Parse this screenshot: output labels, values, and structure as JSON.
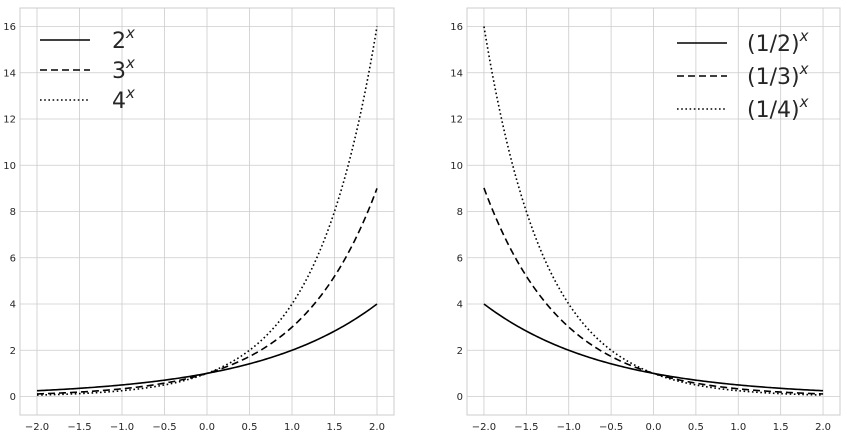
{
  "chart_data": [
    {
      "type": "line",
      "title": "",
      "xlabel": "",
      "ylabel": "",
      "xlim": [
        -2.2,
        2.2
      ],
      "ylim": [
        -0.8,
        16.8
      ],
      "xticks": [
        -2.0,
        -1.5,
        -1.0,
        -0.5,
        0.0,
        0.5,
        1.0,
        1.5,
        2.0
      ],
      "yticks": [
        0,
        2,
        4,
        6,
        8,
        10,
        12,
        14,
        16
      ],
      "x_tick_labels": [
        "−2.0",
        "−1.5",
        "−1.0",
        "−0.5",
        "0.0",
        "0.5",
        "1.0",
        "1.5",
        "2.0"
      ],
      "y_tick_labels": [
        "0",
        "2",
        "4",
        "6",
        "8",
        "10",
        "12",
        "14",
        "16"
      ],
      "grid": true,
      "legend_position": "top-left",
      "x": [
        -2.0,
        -1.5,
        -1.0,
        -0.5,
        0.0,
        0.5,
        1.0,
        1.5,
        2.0
      ],
      "series": [
        {
          "name": "2^x",
          "legend_base": "2",
          "legend_exp": "x",
          "style": "solid",
          "values": [
            0.25,
            0.354,
            0.5,
            0.707,
            1.0,
            1.414,
            2.0,
            2.828,
            4.0
          ]
        },
        {
          "name": "3^x",
          "legend_base": "3",
          "legend_exp": "x",
          "style": "dashed",
          "values": [
            0.111,
            0.192,
            0.333,
            0.577,
            1.0,
            1.732,
            3.0,
            5.196,
            9.0
          ]
        },
        {
          "name": "4^x",
          "legend_base": "4",
          "legend_exp": "x",
          "style": "dotted",
          "values": [
            0.0625,
            0.125,
            0.25,
            0.5,
            1.0,
            2.0,
            4.0,
            8.0,
            16.0
          ]
        }
      ]
    },
    {
      "type": "line",
      "title": "",
      "xlabel": "",
      "ylabel": "",
      "xlim": [
        -2.2,
        2.2
      ],
      "ylim": [
        -0.8,
        16.8
      ],
      "xticks": [
        -2.0,
        -1.5,
        -1.0,
        -0.5,
        0.0,
        0.5,
        1.0,
        1.5,
        2.0
      ],
      "yticks": [
        0,
        2,
        4,
        6,
        8,
        10,
        12,
        14,
        16
      ],
      "x_tick_labels": [
        "−2.0",
        "−1.5",
        "−1.0",
        "−0.5",
        "0.0",
        "0.5",
        "1.0",
        "1.5",
        "2.0"
      ],
      "y_tick_labels": [
        "0",
        "2",
        "4",
        "6",
        "8",
        "10",
        "12",
        "14",
        "16"
      ],
      "grid": true,
      "legend_position": "top-right",
      "x": [
        -2.0,
        -1.5,
        -1.0,
        -0.5,
        0.0,
        0.5,
        1.0,
        1.5,
        2.0
      ],
      "series": [
        {
          "name": "(1/2)^x",
          "legend_base": "(1/2)",
          "legend_exp": "x",
          "style": "solid",
          "values": [
            4.0,
            2.828,
            2.0,
            1.414,
            1.0,
            0.707,
            0.5,
            0.354,
            0.25
          ]
        },
        {
          "name": "(1/3)^x",
          "legend_base": "(1/3)",
          "legend_exp": "x",
          "style": "dashed",
          "values": [
            9.0,
            5.196,
            3.0,
            1.732,
            1.0,
            0.577,
            0.333,
            0.192,
            0.111
          ]
        },
        {
          "name": "(1/4)^x",
          "legend_base": "(1/4)",
          "legend_exp": "x",
          "style": "dotted",
          "values": [
            16.0,
            8.0,
            4.0,
            2.0,
            1.0,
            0.5,
            0.25,
            0.125,
            0.0625
          ]
        }
      ]
    }
  ],
  "colors": {
    "line": "#000000",
    "grid": "#cccccc",
    "axes_edge": "#cccccc",
    "tick_text": "#262626",
    "background": "#ffffff"
  }
}
